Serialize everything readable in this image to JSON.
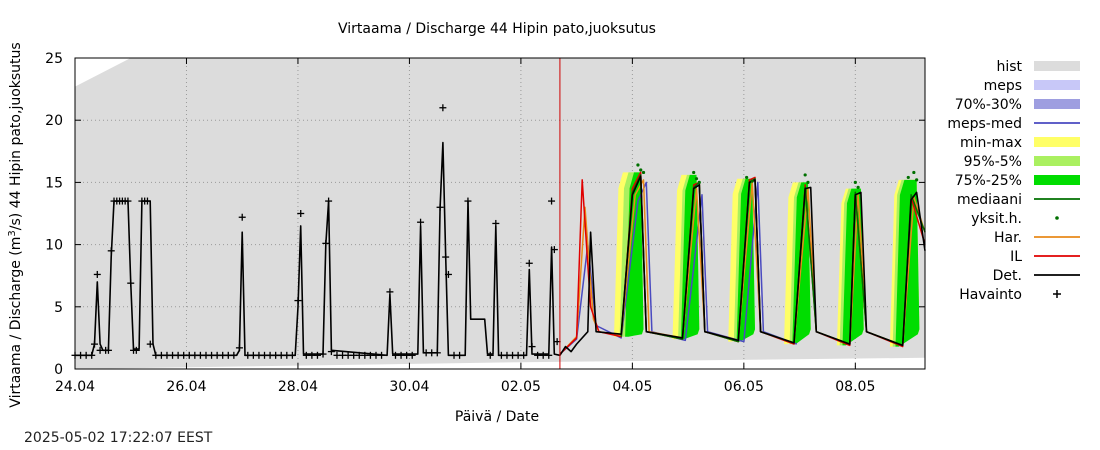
{
  "chart_data": {
    "type": "line",
    "title": "Virtaama / Discharge  44 Hipin pato,juoksutus",
    "xlabel": "Päivä / Date",
    "ylabel_main": "Virtaama / Discharge (m",
    "ylabel_sup": "3",
    "ylabel_rest": "/s)  44 Hipin pato,juoksutus",
    "x_range_days": [
      0,
      15.25
    ],
    "x_start_date": "24.04",
    "x_ticks": [
      {
        "day": 0,
        "label": "24.04"
      },
      {
        "day": 2,
        "label": "26.04"
      },
      {
        "day": 4,
        "label": "28.04"
      },
      {
        "day": 6,
        "label": "30.04"
      },
      {
        "day": 8,
        "label": "02.05"
      },
      {
        "day": 10,
        "label": "04.05"
      },
      {
        "day": 12,
        "label": "06.05"
      },
      {
        "day": 14,
        "label": "08.05"
      }
    ],
    "ylim": [
      0,
      25
    ],
    "y_ticks": [
      0,
      5,
      10,
      15,
      20,
      25
    ],
    "grid": true,
    "forecast_start_day": 8.7,
    "legend": [
      {
        "label": "hist",
        "color": "#dcdcdc",
        "style": "band"
      },
      {
        "label": "meps",
        "color": "#c8c8f8",
        "style": "band"
      },
      {
        "label": "70%-30%",
        "color": "#9e9ee0",
        "style": "band"
      },
      {
        "label": "meps-med",
        "color": "#4a4ac0",
        "style": "line"
      },
      {
        "label": "min-max",
        "color": "#ffff66",
        "style": "band"
      },
      {
        "label": "95%-5%",
        "color": "#aaf060",
        "style": "band"
      },
      {
        "label": "75%-25%",
        "color": "#00dd00",
        "style": "band"
      },
      {
        "label": "mediaani",
        "color": "#007000",
        "style": "line"
      },
      {
        "label": "yksit.h.",
        "color": "#007000",
        "style": "dot"
      },
      {
        "label": "Har.",
        "color": "#e88a1a",
        "style": "line"
      },
      {
        "label": "IL",
        "color": "#e00000",
        "style": "line"
      },
      {
        "label": "Det.",
        "color": "#000000",
        "style": "line"
      },
      {
        "label": "Havainto",
        "color": "#000000",
        "style": "plus"
      }
    ],
    "hist_band": {
      "upper": [
        [
          0,
          22.7
        ],
        [
          1.0,
          25
        ],
        [
          15.25,
          25
        ]
      ],
      "lower": [
        [
          0,
          0
        ],
        [
          8,
          0.55
        ],
        [
          15.25,
          0.9
        ]
      ]
    },
    "series": [
      {
        "name": "Det.",
        "points": [
          [
            0,
            1.1
          ],
          [
            0.3,
            1.1
          ],
          [
            0.35,
            2
          ],
          [
            0.4,
            7
          ],
          [
            0.45,
            2
          ],
          [
            0.5,
            1.5
          ],
          [
            0.6,
            1.5
          ],
          [
            0.65,
            9
          ],
          [
            0.7,
            13.5
          ],
          [
            0.95,
            13.5
          ],
          [
            1.0,
            7
          ],
          [
            1.05,
            1.6
          ],
          [
            1.15,
            1.6
          ],
          [
            1.2,
            13.5
          ],
          [
            1.35,
            13.5
          ],
          [
            1.4,
            2
          ],
          [
            1.45,
            1.1
          ],
          [
            2.9,
            1.1
          ],
          [
            2.95,
            1.5
          ],
          [
            3.0,
            11
          ],
          [
            3.05,
            1.1
          ],
          [
            3.95,
            1.1
          ],
          [
            4.0,
            5
          ],
          [
            4.05,
            11.5
          ],
          [
            4.1,
            1.2
          ],
          [
            4.45,
            1.2
          ],
          [
            4.5,
            10
          ],
          [
            4.55,
            13.5
          ],
          [
            4.6,
            1.5
          ],
          [
            5.6,
            1.1
          ],
          [
            5.65,
            6
          ],
          [
            5.7,
            1.2
          ],
          [
            6.15,
            1.2
          ],
          [
            6.2,
            11.5
          ],
          [
            6.25,
            1.3
          ],
          [
            6.5,
            1.3
          ],
          [
            6.55,
            13
          ],
          [
            6.6,
            18.2
          ],
          [
            6.65,
            9
          ],
          [
            6.7,
            1.1
          ],
          [
            7.0,
            1.1
          ],
          [
            7.05,
            13.5
          ],
          [
            7.1,
            4
          ],
          [
            7.35,
            4
          ],
          [
            7.4,
            1.2
          ],
          [
            7.5,
            1.2
          ],
          [
            7.55,
            11.5
          ],
          [
            7.6,
            1.1
          ],
          [
            8.1,
            1.1
          ],
          [
            8.15,
            8
          ],
          [
            8.2,
            1.2
          ],
          [
            8.5,
            1.2
          ],
          [
            8.55,
            9.8
          ],
          [
            8.6,
            1.2
          ],
          [
            8.7,
            1.1
          ],
          [
            8.8,
            1.8
          ],
          [
            8.9,
            1.4
          ],
          [
            9.0,
            2
          ],
          [
            9.2,
            3
          ],
          [
            9.25,
            11
          ],
          [
            9.35,
            3
          ],
          [
            9.8,
            2.8
          ],
          [
            10.0,
            14
          ],
          [
            10.15,
            15.5
          ],
          [
            10.25,
            3
          ],
          [
            10.9,
            2.5
          ],
          [
            11.1,
            14.5
          ],
          [
            11.2,
            14.8
          ],
          [
            11.3,
            3
          ],
          [
            11.9,
            2.3
          ],
          [
            12.1,
            15
          ],
          [
            12.2,
            15.2
          ],
          [
            12.3,
            3
          ],
          [
            12.9,
            2.1
          ],
          [
            13.1,
            14.5
          ],
          [
            13.2,
            14.6
          ],
          [
            13.3,
            3
          ],
          [
            13.9,
            2
          ],
          [
            14.0,
            14
          ],
          [
            14.1,
            14.2
          ],
          [
            14.2,
            3
          ],
          [
            14.85,
            1.9
          ],
          [
            15.0,
            13.6
          ],
          [
            15.1,
            14.2
          ],
          [
            15.25,
            9.5
          ]
        ]
      },
      {
        "name": "IL",
        "points": [
          [
            8.7,
            1.2
          ],
          [
            9.0,
            2.5
          ],
          [
            9.1,
            15.2
          ],
          [
            9.25,
            5
          ],
          [
            9.4,
            3
          ],
          [
            9.8,
            2.6
          ],
          [
            10.0,
            14.5
          ],
          [
            10.15,
            15.8
          ],
          [
            10.25,
            3
          ],
          [
            10.9,
            2.4
          ],
          [
            11.1,
            14.8
          ],
          [
            11.2,
            15
          ],
          [
            11.3,
            3
          ],
          [
            11.9,
            2.2
          ],
          [
            12.1,
            15.2
          ],
          [
            12.2,
            15.4
          ],
          [
            12.3,
            3
          ],
          [
            12.9,
            2.0
          ],
          [
            13.1,
            14.8
          ],
          [
            13.3,
            3
          ],
          [
            13.9,
            1.9
          ],
          [
            14.0,
            14.2
          ],
          [
            14.2,
            3
          ],
          [
            14.85,
            1.8
          ],
          [
            15.0,
            13.8
          ],
          [
            15.25,
            10
          ]
        ]
      },
      {
        "name": "Har.",
        "points": [
          [
            8.7,
            1.2
          ],
          [
            9.0,
            2.6
          ],
          [
            9.15,
            13
          ],
          [
            9.3,
            4
          ],
          [
            9.4,
            3
          ],
          [
            9.8,
            2.7
          ],
          [
            10.05,
            14
          ],
          [
            10.2,
            15.2
          ],
          [
            10.3,
            3
          ],
          [
            10.9,
            2.5
          ],
          [
            11.15,
            14.5
          ],
          [
            11.3,
            3
          ],
          [
            11.9,
            2.3
          ],
          [
            12.15,
            15
          ],
          [
            12.3,
            3
          ],
          [
            12.9,
            2.1
          ],
          [
            13.15,
            14.5
          ],
          [
            13.3,
            3
          ],
          [
            13.9,
            2.0
          ],
          [
            14.05,
            14
          ],
          [
            14.2,
            3
          ],
          [
            14.85,
            1.9
          ],
          [
            15.05,
            13.8
          ],
          [
            15.25,
            11
          ]
        ]
      },
      {
        "name": "meps-med",
        "points": [
          [
            8.7,
            1.2
          ],
          [
            9.0,
            2.4
          ],
          [
            9.2,
            10
          ],
          [
            9.35,
            3.5
          ],
          [
            9.8,
            2.5
          ],
          [
            10.1,
            13.5
          ],
          [
            10.25,
            15
          ],
          [
            10.35,
            3
          ],
          [
            10.95,
            2.3
          ],
          [
            11.25,
            14
          ],
          [
            11.35,
            3
          ],
          [
            12.0,
            2.2
          ],
          [
            12.25,
            15
          ],
          [
            12.35,
            3
          ],
          [
            12.95,
            2.0
          ]
        ]
      },
      {
        "name": "mediaani",
        "points": [
          [
            9.8,
            2.6
          ],
          [
            10.0,
            14.2
          ],
          [
            10.15,
            15.6
          ],
          [
            10.25,
            3
          ],
          [
            10.9,
            2.4
          ],
          [
            11.1,
            14.6
          ],
          [
            11.2,
            15
          ],
          [
            11.3,
            3
          ],
          [
            11.9,
            2.2
          ],
          [
            12.1,
            15
          ],
          [
            12.2,
            15.3
          ],
          [
            12.3,
            3
          ],
          [
            12.9,
            2.1
          ],
          [
            13.1,
            14.6
          ],
          [
            13.3,
            3
          ],
          [
            13.9,
            2.0
          ],
          [
            14.0,
            14.2
          ],
          [
            14.2,
            3
          ],
          [
            14.85,
            1.9
          ],
          [
            15.0,
            14
          ],
          [
            15.25,
            11
          ]
        ]
      }
    ],
    "forecast_bands": [
      {
        "name": "min-max",
        "color": "#ffff66",
        "peaks": [
          [
            9.75,
            10.15
          ],
          [
            10.8,
            11.15
          ],
          [
            11.8,
            12.15
          ],
          [
            12.8,
            13.15
          ],
          [
            13.75,
            14.1
          ],
          [
            14.7,
            15.1
          ]
        ]
      },
      {
        "name": "95%-5%",
        "color": "#aaf060",
        "peaks": [
          [
            9.85,
            10.15
          ],
          [
            10.9,
            11.15
          ],
          [
            11.9,
            12.15
          ],
          [
            12.9,
            13.15
          ],
          [
            13.8,
            14.1
          ],
          [
            14.75,
            15.1
          ]
        ]
      },
      {
        "name": "75%-25%",
        "color": "#00dd00",
        "peaks": [
          [
            9.95,
            10.15
          ],
          [
            10.95,
            11.15
          ],
          [
            11.95,
            12.15
          ],
          [
            12.95,
            13.15
          ],
          [
            13.85,
            14.1
          ],
          [
            14.8,
            15.1
          ]
        ]
      }
    ],
    "band_peak_values": [
      15.8,
      15.6,
      15.3,
      15.0,
      14.5,
      15.2
    ],
    "band_trough_values": [
      2.6,
      2.4,
      2.2,
      2.0,
      1.9,
      1.8
    ],
    "yksit_h_points": [
      [
        10.1,
        16.4
      ],
      [
        10.15,
        16.0
      ],
      [
        10.2,
        15.8
      ],
      [
        11.1,
        15.8
      ],
      [
        11.15,
        15.3
      ],
      [
        11.2,
        15.0
      ],
      [
        12.05,
        15.4
      ],
      [
        12.15,
        15.1
      ],
      [
        13.1,
        15.6
      ],
      [
        13.15,
        15.0
      ],
      [
        14.0,
        15.0
      ],
      [
        14.05,
        14.6
      ],
      [
        14.95,
        15.4
      ],
      [
        15.05,
        15.8
      ],
      [
        15.1,
        15.2
      ]
    ],
    "havainto_points": [
      [
        0,
        1.1
      ],
      [
        0.1,
        1.1
      ],
      [
        0.2,
        1.1
      ],
      [
        0.3,
        1.1
      ],
      [
        0.35,
        2.0
      ],
      [
        0.4,
        7.6
      ],
      [
        0.45,
        1.5
      ],
      [
        0.55,
        1.5
      ],
      [
        0.6,
        1.5
      ],
      [
        0.65,
        9.5
      ],
      [
        0.7,
        13.5
      ],
      [
        0.75,
        13.5
      ],
      [
        0.8,
        13.5
      ],
      [
        0.85,
        13.5
      ],
      [
        0.9,
        13.5
      ],
      [
        0.95,
        13.5
      ],
      [
        1.0,
        6.9
      ],
      [
        1.05,
        1.5
      ],
      [
        1.1,
        1.5
      ],
      [
        1.2,
        13.5
      ],
      [
        1.25,
        13.5
      ],
      [
        1.3,
        13.5
      ],
      [
        1.35,
        2.0
      ],
      [
        1.45,
        1.1
      ],
      [
        1.55,
        1.1
      ],
      [
        1.65,
        1.1
      ],
      [
        1.75,
        1.1
      ],
      [
        1.85,
        1.1
      ],
      [
        1.95,
        1.1
      ],
      [
        2.05,
        1.1
      ],
      [
        2.15,
        1.1
      ],
      [
        2.25,
        1.1
      ],
      [
        2.35,
        1.1
      ],
      [
        2.45,
        1.1
      ],
      [
        2.55,
        1.1
      ],
      [
        2.65,
        1.1
      ],
      [
        2.75,
        1.1
      ],
      [
        2.85,
        1.1
      ],
      [
        2.95,
        1.7
      ],
      [
        3.0,
        12.2
      ],
      [
        3.1,
        1.1
      ],
      [
        3.2,
        1.1
      ],
      [
        3.3,
        1.1
      ],
      [
        3.4,
        1.1
      ],
      [
        3.5,
        1.1
      ],
      [
        3.6,
        1.1
      ],
      [
        3.7,
        1.1
      ],
      [
        3.8,
        1.1
      ],
      [
        3.9,
        1.1
      ],
      [
        4.0,
        5.5
      ],
      [
        4.05,
        12.5
      ],
      [
        4.15,
        1.1
      ],
      [
        4.25,
        1.1
      ],
      [
        4.35,
        1.1
      ],
      [
        4.45,
        1.2
      ],
      [
        4.5,
        10.1
      ],
      [
        4.55,
        13.5
      ],
      [
        4.6,
        1.4
      ],
      [
        4.7,
        1.1
      ],
      [
        4.8,
        1.1
      ],
      [
        4.9,
        1.1
      ],
      [
        5.0,
        1.1
      ],
      [
        5.1,
        1.1
      ],
      [
        5.2,
        1.1
      ],
      [
        5.3,
        1.1
      ],
      [
        5.4,
        1.1
      ],
      [
        5.5,
        1.1
      ],
      [
        5.65,
        6.2
      ],
      [
        5.75,
        1.1
      ],
      [
        5.85,
        1.1
      ],
      [
        5.95,
        1.1
      ],
      [
        6.05,
        1.1
      ],
      [
        6.2,
        11.8
      ],
      [
        6.3,
        1.3
      ],
      [
        6.4,
        1.3
      ],
      [
        6.5,
        1.3
      ],
      [
        6.55,
        13.0
      ],
      [
        6.6,
        21.0
      ],
      [
        6.65,
        9.0
      ],
      [
        6.7,
        7.6
      ],
      [
        6.8,
        1.1
      ],
      [
        6.9,
        1.1
      ],
      [
        7.05,
        13.5
      ],
      [
        7.45,
        1.1
      ],
      [
        7.55,
        11.7
      ],
      [
        7.65,
        1.1
      ],
      [
        7.75,
        1.1
      ],
      [
        7.85,
        1.1
      ],
      [
        7.95,
        1.1
      ],
      [
        8.05,
        1.1
      ],
      [
        8.15,
        8.5
      ],
      [
        8.2,
        1.8
      ],
      [
        8.3,
        1.1
      ],
      [
        8.4,
        1.1
      ],
      [
        8.5,
        1.1
      ],
      [
        8.55,
        13.5
      ],
      [
        8.6,
        9.6
      ],
      [
        8.65,
        2.2
      ]
    ]
  },
  "timestamp": "2025-05-02 17:22:07 EEST"
}
